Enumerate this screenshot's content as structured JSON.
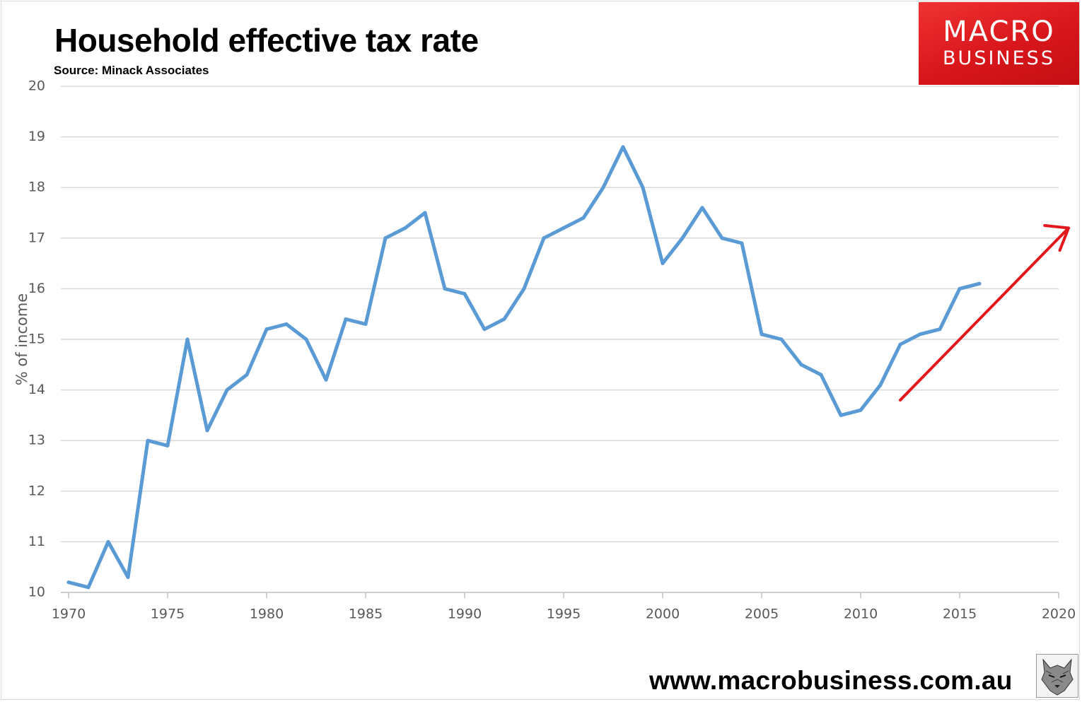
{
  "logo": {
    "line1": "MACRO",
    "line2": "BUSINESS"
  },
  "footer": {
    "url": "www.macrobusiness.com.au",
    "mascot_icon": "wolf-icon"
  },
  "colors": {
    "series": "#5b9bd5",
    "arrow": "#e3171c",
    "grid": "#d9d9d9",
    "tick": "#595959",
    "logo_bg": "#dc1d22"
  },
  "chart_data": {
    "type": "line",
    "title": "Household effective tax rate",
    "subtitle": "Source: Minack Associates",
    "xlabel": "",
    "ylabel": "% of income",
    "xlim": [
      1970,
      2020
    ],
    "ylim": [
      10,
      20
    ],
    "xticks": [
      1970,
      1975,
      1980,
      1985,
      1990,
      1995,
      2000,
      2005,
      2010,
      2015,
      2020
    ],
    "yticks": [
      10,
      11,
      12,
      13,
      14,
      15,
      16,
      17,
      18,
      19,
      20
    ],
    "grid": true,
    "legend": "none",
    "series": [
      {
        "name": "Household effective tax rate",
        "x": [
          1970.0,
          1971.0,
          1972.0,
          1973.0,
          1974.0,
          1975.0,
          1976.0,
          1977.0,
          1978.0,
          1979.0,
          1980.0,
          1981.0,
          1982.0,
          1983.0,
          1984.0,
          1985.0,
          1986.0,
          1987.0,
          1988.0,
          1989.0,
          1990.0,
          1991.0,
          1992.0,
          1993.0,
          1994.0,
          1995.0,
          1996.0,
          1997.0,
          1998.0,
          1999.0,
          2000.0,
          2001.0,
          2002.0,
          2003.0,
          2004.0,
          2005.0,
          2006.0,
          2007.0,
          2008.0,
          2009.0,
          2010.0,
          2011.0,
          2012.0,
          2013.0,
          2014.0,
          2015.0,
          2016.0
        ],
        "values": [
          10.2,
          10.1,
          11.0,
          10.3,
          13.0,
          12.9,
          15.0,
          13.2,
          14.0,
          14.3,
          15.2,
          15.3,
          15.0,
          14.2,
          15.4,
          15.3,
          17.0,
          17.2,
          17.5,
          16.0,
          15.9,
          15.2,
          15.4,
          16.0,
          17.0,
          17.2,
          17.4,
          18.0,
          18.8,
          18.0,
          16.5,
          17.0,
          17.6,
          17.0,
          16.9,
          15.1,
          15.0,
          14.5,
          14.3,
          13.5,
          13.6,
          14.1,
          14.9,
          15.1,
          15.2,
          16.0,
          16.1
        ]
      }
    ],
    "annotations": [
      {
        "type": "arrow",
        "from": [
          2012.0,
          13.8
        ],
        "to": [
          2020.5,
          17.2
        ]
      }
    ]
  }
}
